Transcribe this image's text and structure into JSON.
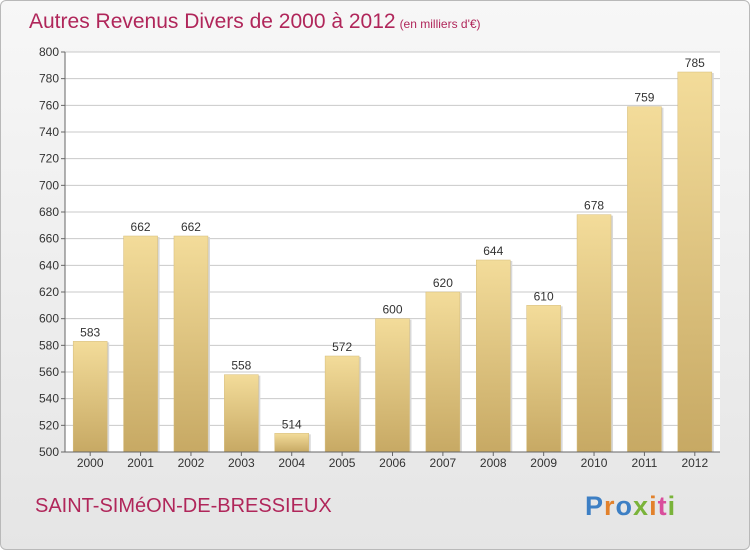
{
  "chart_data": {
    "type": "bar",
    "title": "Autres Revenus Divers de 2000 à 2012",
    "subtitle": "(en milliers d'€)",
    "categories": [
      "2000",
      "2001",
      "2002",
      "2003",
      "2004",
      "2005",
      "2006",
      "2007",
      "2008",
      "2009",
      "2010",
      "2011",
      "2012"
    ],
    "values": [
      583,
      662,
      662,
      558,
      514,
      572,
      600,
      620,
      644,
      610,
      678,
      759,
      785
    ],
    "y_ticks": [
      500,
      520,
      540,
      560,
      580,
      600,
      620,
      640,
      660,
      680,
      700,
      720,
      740,
      760,
      780,
      800
    ],
    "ylim": [
      500,
      800
    ],
    "grid": true,
    "data_labels": true,
    "colors": {
      "bar_top": "#f3dc9a",
      "bar_bottom": "#c7a964",
      "grid": "#c9c9c9",
      "title": "#b0265a",
      "text": "#333333"
    }
  },
  "footer": {
    "place": "SAINT-SIMéON-DE-BRESSIEUX",
    "brand_letters": [
      "P",
      "r",
      "o",
      "x",
      "i",
      "t",
      "i"
    ],
    "brand_colors": [
      "#3d7fc4",
      "#e2812b",
      "#3d7fc4",
      "#7ab33a",
      "#e2812b",
      "#d94e9c",
      "#7ab33a"
    ]
  }
}
